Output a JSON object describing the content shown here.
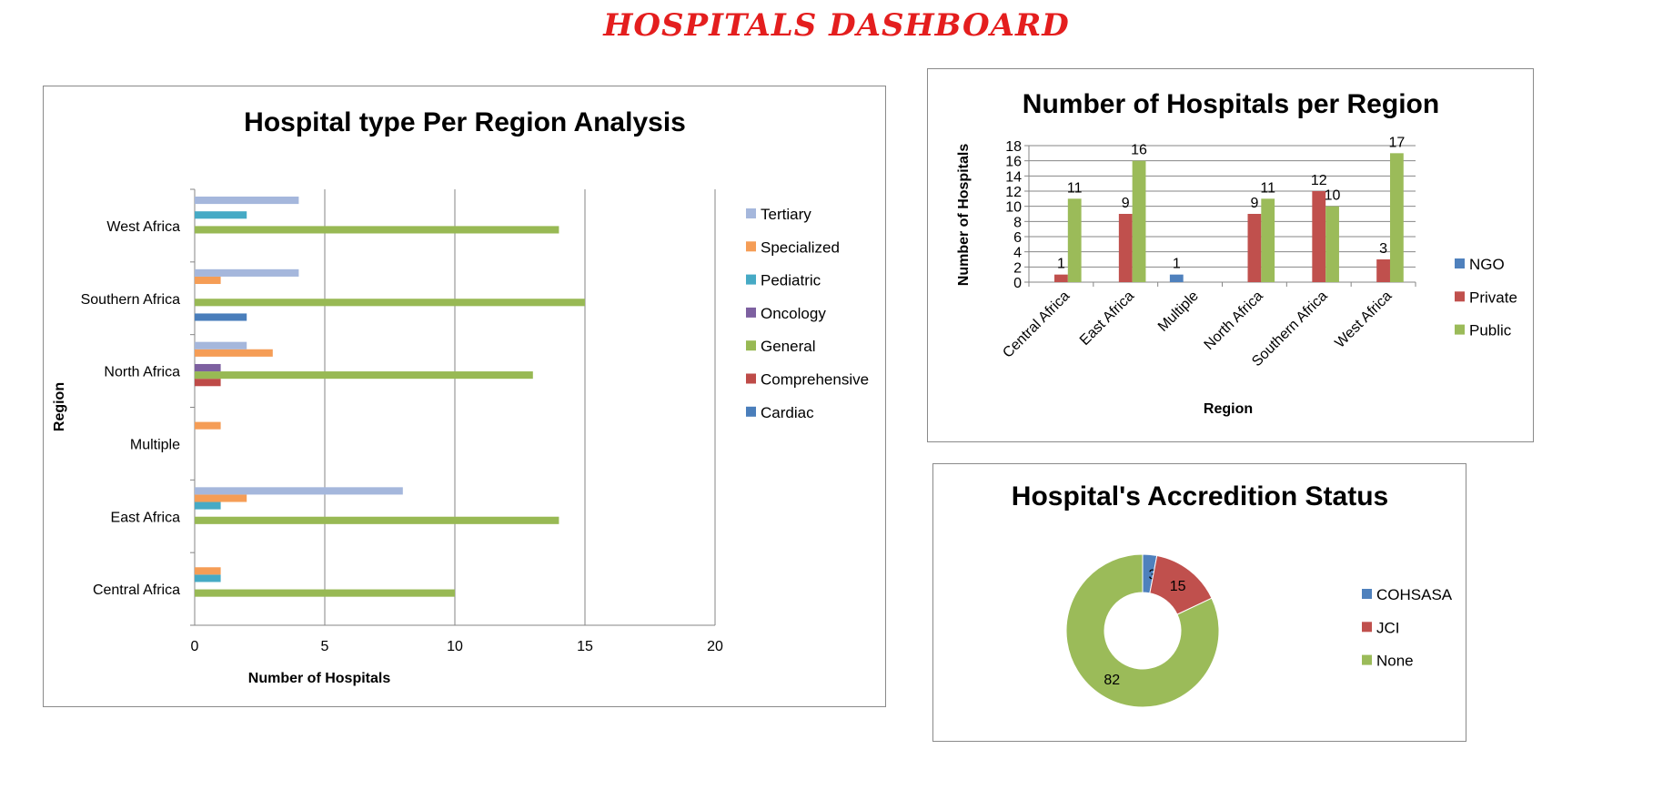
{
  "dashboard": {
    "title": "HOSPITALS DASHBOARD"
  },
  "chart_data": [
    {
      "type": "bar",
      "orientation": "horizontal",
      "title": "Hospital type Per Region Analysis",
      "xlabel": "Number of Hospitals",
      "ylabel": "Region",
      "xlim": [
        0,
        20
      ],
      "xticks": [
        0,
        5,
        10,
        15,
        20
      ],
      "grid": "vertical",
      "legend_position": "right",
      "categories": [
        "Central Africa",
        "East Africa",
        "Multiple",
        "North Africa",
        "Southern Africa",
        "West Africa"
      ],
      "series": [
        {
          "name": "Cardiac",
          "color": "#4a7ebb",
          "values": [
            0,
            0,
            0,
            0,
            2,
            0
          ]
        },
        {
          "name": "Comprehensive",
          "color": "#be4b48",
          "values": [
            0,
            0,
            0,
            1,
            0,
            0
          ]
        },
        {
          "name": "General",
          "color": "#98b954",
          "values": [
            10,
            14,
            0,
            13,
            15,
            14
          ]
        },
        {
          "name": "Oncology",
          "color": "#7d60a0",
          "values": [
            0,
            0,
            0,
            1,
            0,
            0
          ]
        },
        {
          "name": "Pediatric",
          "color": "#46aac5",
          "values": [
            1,
            1,
            0,
            0,
            0,
            2
          ]
        },
        {
          "name": "Specialized",
          "color": "#f59d56",
          "values": [
            1,
            2,
            1,
            3,
            1,
            0
          ]
        },
        {
          "name": "Tertiary",
          "color": "#a5b7dc",
          "values": [
            0,
            8,
            0,
            2,
            4,
            4
          ]
        }
      ],
      "legend_order": [
        "Tertiary",
        "Specialized",
        "Pediatric",
        "Oncology",
        "General",
        "Comprehensive",
        "Cardiac"
      ]
    },
    {
      "type": "bar",
      "title": "Number of Hospitals per Region",
      "xlabel": "Region",
      "ylabel": "Number of Hospitals",
      "ylim": [
        0,
        18
      ],
      "yticks": [
        0,
        2,
        4,
        6,
        8,
        10,
        12,
        14,
        16,
        18
      ],
      "grid": "horizontal",
      "legend_position": "right",
      "categories": [
        "Central Africa",
        "East Africa",
        "Multiple",
        "North Africa",
        "Southern Africa",
        "West Africa"
      ],
      "series": [
        {
          "name": "NGO",
          "color": "#4f81bd",
          "values": [
            null,
            null,
            1,
            null,
            null,
            null
          ]
        },
        {
          "name": "Private",
          "color": "#c0504d",
          "values": [
            1,
            9,
            null,
            9,
            12,
            3
          ]
        },
        {
          "name": "Public",
          "color": "#9bbb59",
          "values": [
            11,
            16,
            null,
            11,
            10,
            17
          ]
        }
      ]
    },
    {
      "type": "pie",
      "subtype": "donut",
      "title": "Hospital's Accredition Status",
      "legend_position": "right",
      "labels": [
        "COHSASA",
        "JCI",
        "None"
      ],
      "values": [
        3,
        15,
        82
      ],
      "colors": [
        "#4f81bd",
        "#c0504d",
        "#9bbb59"
      ]
    }
  ]
}
